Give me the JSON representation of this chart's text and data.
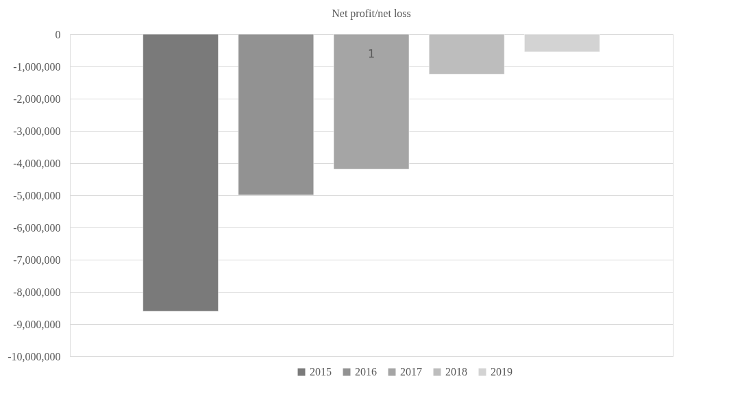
{
  "chart_data": {
    "type": "bar",
    "title": "Net profit/net loss",
    "categories": [
      "1"
    ],
    "series": [
      {
        "name": "2015",
        "color": "#7a7a7a",
        "values": [
          -8600000
        ]
      },
      {
        "name": "2016",
        "color": "#929292",
        "values": [
          -4990000
        ]
      },
      {
        "name": "2017",
        "color": "#a5a5a5",
        "values": [
          -4190000
        ]
      },
      {
        "name": "2018",
        "color": "#bdbdbd",
        "values": [
          -1240000
        ]
      },
      {
        "name": "2019",
        "color": "#d3d3d3",
        "values": [
          -550000
        ]
      }
    ],
    "ylim": [
      -10000000,
      0
    ],
    "yticks": [
      0,
      {
        "value": -1000000,
        "label": "-1,000,000"
      },
      {
        "value": -2000000,
        "label": "-2,000,000"
      },
      {
        "value": -3000000,
        "label": "-3,000,000"
      },
      {
        "value": -4000000,
        "label": "-4,000,000"
      },
      {
        "value": -5000000,
        "label": "-5,000,000"
      },
      {
        "value": -6000000,
        "label": "-6,000,000"
      },
      {
        "value": -7000000,
        "label": "-7,000,000"
      },
      {
        "value": -8000000,
        "label": "-8,000,000"
      },
      {
        "value": -9000000,
        "label": "-9,000,000"
      },
      {
        "value": -10000000,
        "label": "-10,000,000"
      }
    ],
    "grid": "y",
    "legend": "bottom"
  }
}
